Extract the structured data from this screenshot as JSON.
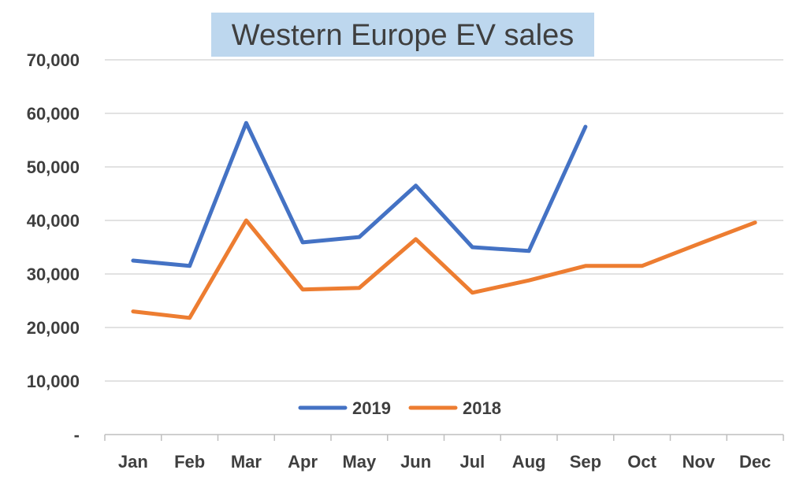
{
  "chart_data": {
    "type": "line",
    "title": "Western Europe EV sales",
    "categories": [
      "Jan",
      "Feb",
      "Mar",
      "Apr",
      "May",
      "Jun",
      "Jul",
      "Aug",
      "Sep",
      "Oct",
      "Nov",
      "Dec"
    ],
    "y_tick_labels": [
      "-",
      "10,000",
      "20,000",
      "30,000",
      "40,000",
      "50,000",
      "60,000",
      "70,000"
    ],
    "ylim": [
      0,
      70000
    ],
    "y_tick_step": 10000,
    "grid": true,
    "legend_position": "bottom-center",
    "series": [
      {
        "name": "2019",
        "color": "#4472c4",
        "values": [
          32500,
          31500,
          58200,
          35900,
          36900,
          46500,
          35000,
          34300,
          57500,
          null,
          null,
          null
        ]
      },
      {
        "name": "2018",
        "color": "#ed7d31",
        "values": [
          23000,
          21800,
          40000,
          27100,
          27400,
          36500,
          26500,
          28800,
          31500,
          31500,
          35600,
          39600
        ]
      }
    ]
  }
}
